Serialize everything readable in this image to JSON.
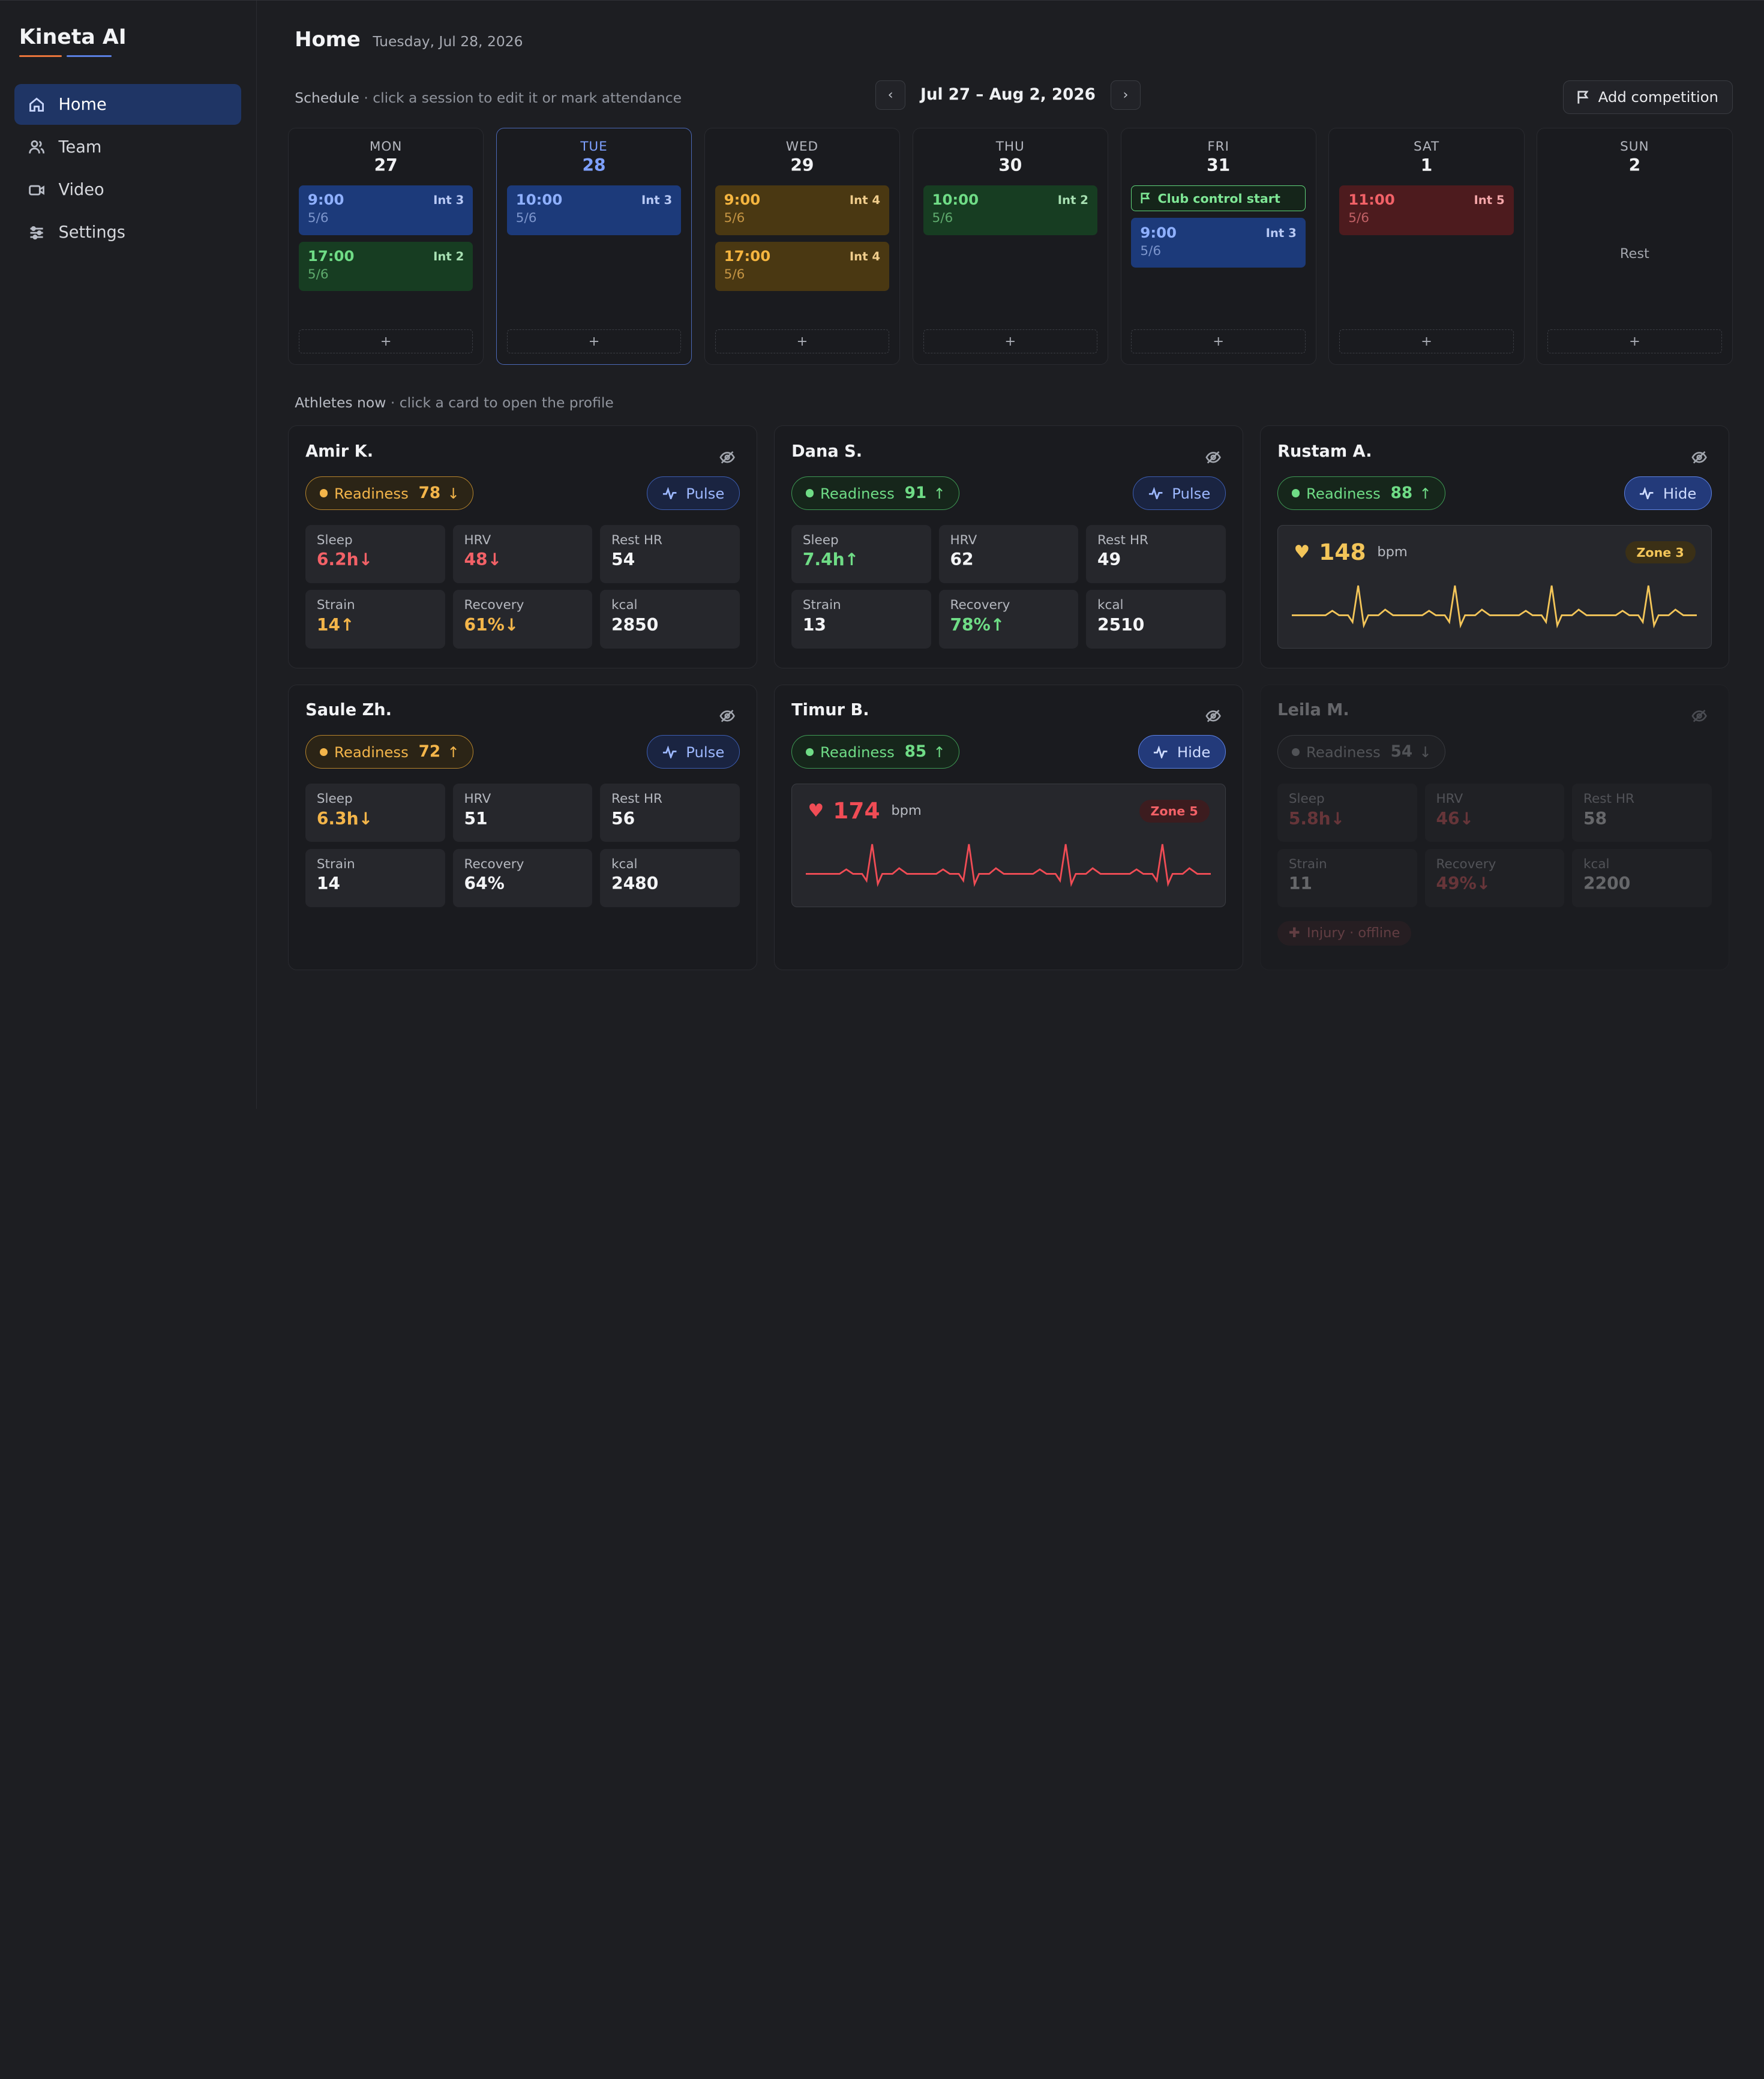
{
  "app": {
    "name": "Kineta AI"
  },
  "sidebar": {
    "items": [
      {
        "label": "Home",
        "icon": "home-icon",
        "active": true
      },
      {
        "label": "Team",
        "icon": "team-icon",
        "active": false
      },
      {
        "label": "Video",
        "icon": "video-icon",
        "active": false
      },
      {
        "label": "Settings",
        "icon": "settings-icon",
        "active": false
      }
    ]
  },
  "header": {
    "title": "Home",
    "date": "Tuesday, Jul 28, 2026"
  },
  "schedule": {
    "hint_label": "Schedule",
    "hint_text": " · click a session to edit it or mark attendance",
    "prev": "‹",
    "next": "›",
    "week_label": "Jul 27 – Aug 2, 2026",
    "add_competition": "Add competition",
    "add_slot": "+",
    "days": [
      {
        "name": "MON",
        "num": "27",
        "today": false,
        "sessions": [
          {
            "time": "9:00",
            "count": "5/6",
            "level": "Int 3",
            "color": "blue"
          },
          {
            "time": "17:00",
            "count": "5/6",
            "level": "Int 2",
            "color": "green"
          }
        ]
      },
      {
        "name": "TUE",
        "num": "28",
        "today": true,
        "sessions": [
          {
            "time": "10:00",
            "count": "5/6",
            "level": "Int 3",
            "color": "blue"
          }
        ]
      },
      {
        "name": "WED",
        "num": "29",
        "today": false,
        "sessions": [
          {
            "time": "9:00",
            "count": "5/6",
            "level": "Int 4",
            "color": "amber"
          },
          {
            "time": "17:00",
            "count": "5/6",
            "level": "Int 4",
            "color": "amber"
          }
        ]
      },
      {
        "name": "THU",
        "num": "30",
        "today": false,
        "sessions": [
          {
            "time": "10:00",
            "count": "5/6",
            "level": "Int 2",
            "color": "green"
          }
        ]
      },
      {
        "name": "FRI",
        "num": "31",
        "today": false,
        "competition": "Club control start",
        "sessions": [
          {
            "time": "9:00",
            "count": "5/6",
            "level": "Int 3",
            "color": "blue"
          }
        ]
      },
      {
        "name": "SAT",
        "num": "1",
        "today": false,
        "sessions": [
          {
            "time": "11:00",
            "count": "5/6",
            "level": "Int 5",
            "color": "red"
          }
        ]
      },
      {
        "name": "SUN",
        "num": "2",
        "today": false,
        "rest": "Rest",
        "sessions": []
      }
    ]
  },
  "athletes_section": {
    "hint_label": "Athletes now",
    "hint_text": " · click a card to open the profile"
  },
  "athletes": [
    {
      "name": "Amir K.",
      "readiness_label": "Readiness",
      "readiness": "78",
      "trend": "↓",
      "readiness_color": "amber",
      "action": "Pulse",
      "action_active": false,
      "metrics": [
        {
          "label": "Sleep",
          "value": "6.2h↓",
          "color": "red"
        },
        {
          "label": "HRV",
          "value": "48↓",
          "color": "red"
        },
        {
          "label": "Rest HR",
          "value": "54",
          "color": ""
        },
        {
          "label": "Strain",
          "value": "14↑",
          "color": "amber"
        },
        {
          "label": "Recovery",
          "value": "61%↓",
          "color": "amber"
        },
        {
          "label": "kcal",
          "value": "2850",
          "color": ""
        }
      ]
    },
    {
      "name": "Dana S.",
      "readiness_label": "Readiness",
      "readiness": "91",
      "trend": "↑",
      "readiness_color": "green",
      "action": "Pulse",
      "action_active": false,
      "metrics": [
        {
          "label": "Sleep",
          "value": "7.4h↑",
          "color": "green"
        },
        {
          "label": "HRV",
          "value": "62",
          "color": ""
        },
        {
          "label": "Rest HR",
          "value": "49",
          "color": ""
        },
        {
          "label": "Strain",
          "value": "13",
          "color": ""
        },
        {
          "label": "Recovery",
          "value": "78%↑",
          "color": "green"
        },
        {
          "label": "kcal",
          "value": "2510",
          "color": ""
        }
      ]
    },
    {
      "name": "Rustam A.",
      "readiness_label": "Readiness",
      "readiness": "88",
      "trend": "↑",
      "readiness_color": "green",
      "action": "Hide",
      "action_active": true,
      "pulse": {
        "bpm": "148",
        "unit": "bpm",
        "zone": "Zone 3",
        "color": "#f3c559",
        "zone_style": "amber"
      }
    },
    {
      "name": "Saule Zh.",
      "readiness_label": "Readiness",
      "readiness": "72",
      "trend": "↑",
      "readiness_color": "amber",
      "action": "Pulse",
      "action_active": false,
      "metrics": [
        {
          "label": "Sleep",
          "value": "6.3h↓",
          "color": "amber"
        },
        {
          "label": "HRV",
          "value": "51",
          "color": ""
        },
        {
          "label": "Rest HR",
          "value": "56",
          "color": ""
        },
        {
          "label": "Strain",
          "value": "14",
          "color": ""
        },
        {
          "label": "Recovery",
          "value": "64%",
          "color": ""
        },
        {
          "label": "kcal",
          "value": "2480",
          "color": ""
        }
      ]
    },
    {
      "name": "Timur B.",
      "readiness_label": "Readiness",
      "readiness": "85",
      "trend": "↑",
      "readiness_color": "green",
      "action": "Hide",
      "action_active": true,
      "pulse": {
        "bpm": "174",
        "unit": "bpm",
        "zone": "Zone 5",
        "color": "#f04c55",
        "zone_style": "red"
      }
    },
    {
      "name": "Leila M.",
      "readiness_label": "Readiness",
      "readiness": "54",
      "trend": "↓",
      "readiness_color": "gray",
      "dim": true,
      "metrics": [
        {
          "label": "Sleep",
          "value": "5.8h↓",
          "color": "red"
        },
        {
          "label": "HRV",
          "value": "46↓",
          "color": "red"
        },
        {
          "label": "Rest HR",
          "value": "58",
          "color": ""
        },
        {
          "label": "Strain",
          "value": "11",
          "color": ""
        },
        {
          "label": "Recovery",
          "value": "49%↓",
          "color": "red"
        },
        {
          "label": "kcal",
          "value": "2200",
          "color": ""
        }
      ],
      "status": "Injury · offline"
    }
  ]
}
